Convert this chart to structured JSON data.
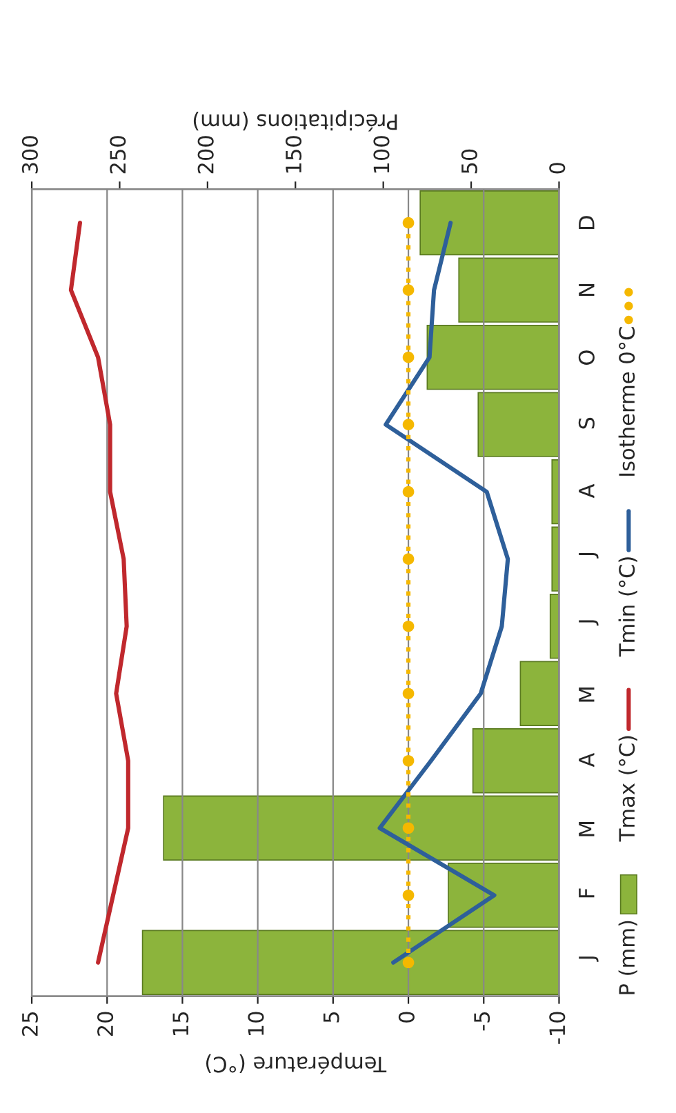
{
  "chart_data": {
    "type": "bar",
    "orientation": "horizontal",
    "categories": [
      "D",
      "N",
      "O",
      "S",
      "A",
      "J",
      "J",
      "M",
      "A",
      "M",
      "F",
      "J"
    ],
    "xlabel": "Température (°C)",
    "x2label": "Précipitations (mm)",
    "xlim": [
      25,
      -10
    ],
    "xticks": [
      25,
      20,
      15,
      10,
      5,
      0,
      -5,
      -10
    ],
    "x2lim": [
      300,
      0
    ],
    "x2ticks": [
      300,
      250,
      200,
      150,
      100,
      50,
      0
    ],
    "grid": "x",
    "legend": "right",
    "series": [
      {
        "name": "P (mm)",
        "axis": "x2",
        "color": "#8cb43c",
        "values": [
          79,
          57,
          75,
          46,
          4,
          4,
          5,
          22,
          49,
          225,
          63,
          237
        ]
      },
      {
        "name": "Tmax (°C)",
        "type": "line",
        "color": "#c0282d",
        "line_style": "solid",
        "marker": "none",
        "values": [
          21.8,
          22.4,
          20.6,
          19.8,
          19.8,
          18.9,
          18.7,
          19.4,
          18.6,
          18.6,
          19.6,
          20.6
        ]
      },
      {
        "name": "Tmin (°C)",
        "type": "line",
        "color": "#2e5f9a",
        "line_style": "solid",
        "marker": "none",
        "values": [
          -2.8,
          -1.7,
          -1.4,
          1.5,
          -5.2,
          -6.6,
          -6.2,
          -4.8,
          -1.5,
          1.9,
          -5.7,
          1.0
        ]
      },
      {
        "name": "Isotherme 0°C",
        "type": "line",
        "color": "#f5b800",
        "line_style": "dotted",
        "marker": "circle",
        "values": [
          0,
          0,
          0,
          0,
          0,
          0,
          0,
          0,
          0,
          0,
          0,
          0
        ]
      }
    ]
  }
}
